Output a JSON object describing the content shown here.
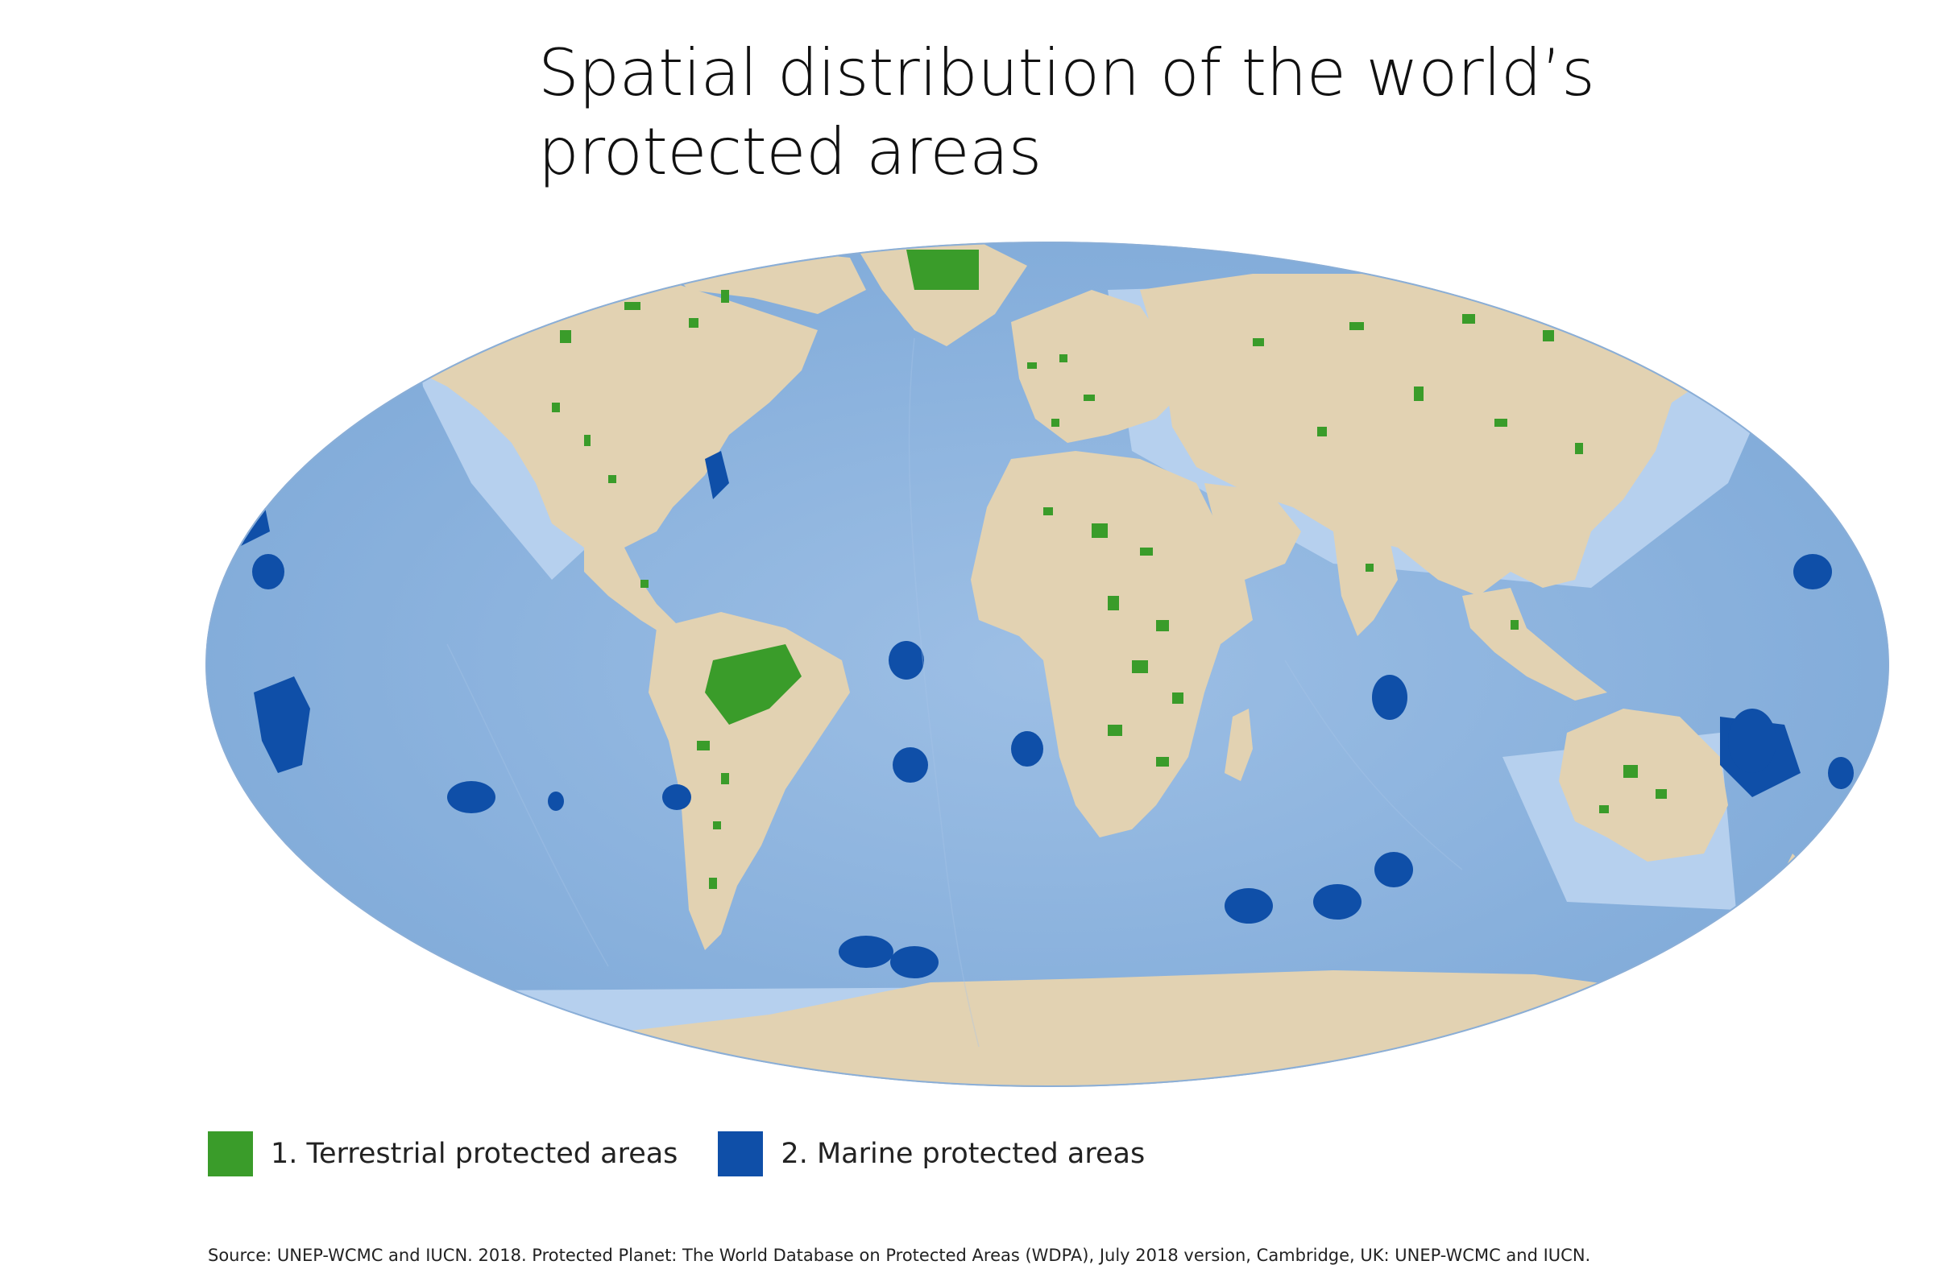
{
  "title_line1": "Spatial distribution of the world’s",
  "title_line2": "protected areas",
  "legend": [
    {
      "label": "1. Terrestrial protected areas",
      "color": "#3a9c2a"
    },
    {
      "label": "2. Marine protected areas",
      "color": "#0f4fa8"
    }
  ],
  "source": "Source: UNEP-WCMC and IUCN. 2018. Protected Planet: The World Database on Protected Areas (WDPA), July 2018 version, Cambridge, UK: UNEP-WCMC and IUCN.",
  "colors": {
    "ocean": "#8fb5df",
    "ocean_shelf": "#b6d0ee",
    "land": "#e2d2b2",
    "terrestrial": "#3a9c2a",
    "marine": "#0f4fa8"
  }
}
